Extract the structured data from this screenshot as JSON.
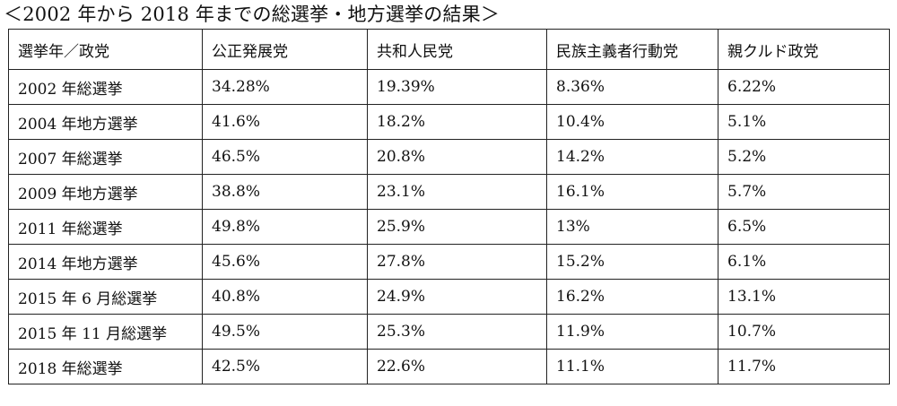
{
  "caption": "＜2002 年から 2018 年までの総選挙・地方選挙の結果＞",
  "table": {
    "headers": [
      "選挙年／政党",
      "公正発展党",
      "共和人民党",
      "民族主義者行動党",
      "親クルド政党"
    ],
    "rows": [
      [
        "2002 年総選挙",
        "34.28%",
        "19.39%",
        "8.36%",
        "6.22%"
      ],
      [
        "2004 年地方選挙",
        "41.6%",
        "18.2%",
        "10.4%",
        "5.1%"
      ],
      [
        "2007 年総選挙",
        "46.5%",
        "20.8%",
        "14.2%",
        "5.2%"
      ],
      [
        "2009 年地方選挙",
        "38.8%",
        "23.1%",
        "16.1%",
        "5.7%"
      ],
      [
        "2011 年総選挙",
        "49.8%",
        "25.9%",
        "13%",
        "6.5%"
      ],
      [
        "2014 年地方選挙",
        "45.6%",
        "27.8%",
        "15.2%",
        "6.1%"
      ],
      [
        "2015 年 6 月総選挙",
        "40.8%",
        "24.9%",
        "16.2%",
        "13.1%"
      ],
      [
        "2015 年 11 月総選挙",
        "49.5%",
        "25.3%",
        "11.9%",
        "10.7%"
      ],
      [
        "2018 年総選挙",
        "42.5%",
        "22.6%",
        "11.1%",
        "11.7%"
      ]
    ]
  }
}
